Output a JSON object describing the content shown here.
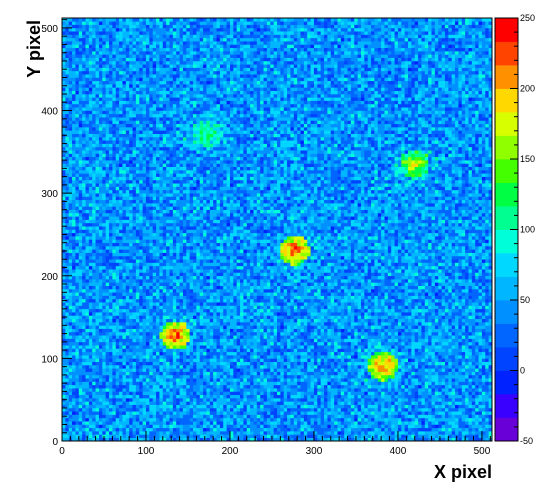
{
  "chart_data": {
    "type": "heatmap",
    "title": "",
    "xlabel": "X pixel",
    "ylabel": "Y pixel",
    "xlim": [
      0,
      512
    ],
    "ylim": [
      0,
      512
    ],
    "zlim": [
      -50,
      250
    ],
    "x_ticks": [
      0,
      100,
      200,
      300,
      400,
      500
    ],
    "y_ticks": [
      0,
      100,
      200,
      300,
      400,
      500
    ],
    "z_ticks": [
      -50,
      0,
      50,
      100,
      150,
      200,
      250
    ],
    "background_level": 45,
    "spots": [
      {
        "x": 135,
        "y": 128,
        "radius": 18,
        "peak": 230
      },
      {
        "x": 277,
        "y": 231,
        "radius": 18,
        "peak": 230
      },
      {
        "x": 382,
        "y": 91,
        "radius": 18,
        "peak": 220
      },
      {
        "x": 420,
        "y": 335,
        "radius": 18,
        "peak": 170
      },
      {
        "x": 172,
        "y": 372,
        "radius": 18,
        "peak": 120
      }
    ],
    "palette": [
      "#6a00d8",
      "#3a00ff",
      "#0022ff",
      "#0044ff",
      "#0066ff",
      "#0090ff",
      "#00b6ff",
      "#00d8ff",
      "#00ffd8",
      "#00ff90",
      "#00ff44",
      "#44ff00",
      "#90ff00",
      "#d8ff00",
      "#ffd800",
      "#ff9000",
      "#ff4400",
      "#ff0000"
    ]
  }
}
